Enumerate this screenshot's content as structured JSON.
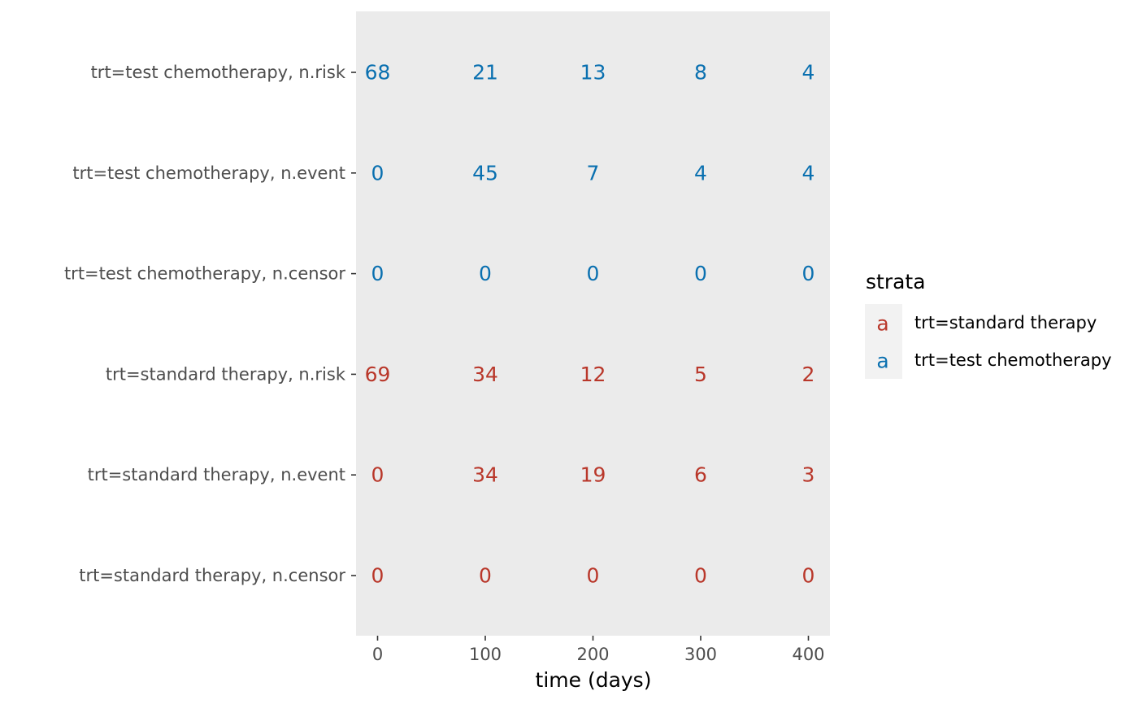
{
  "chart_data": {
    "type": "table",
    "title": "",
    "xlabel": "time (days)",
    "ylabel": "",
    "x_ticks": [
      0,
      100,
      200,
      300,
      400
    ],
    "xlim": [
      -20,
      420
    ],
    "grid": false,
    "rows": [
      {
        "label": "trt=test chemotherapy, n.risk",
        "stratum": "trt=test chemotherapy",
        "values": [
          68,
          21,
          13,
          8,
          4
        ]
      },
      {
        "label": "trt=test chemotherapy, n.event",
        "stratum": "trt=test chemotherapy",
        "values": [
          0,
          45,
          7,
          4,
          4
        ]
      },
      {
        "label": "trt=test chemotherapy, n.censor",
        "stratum": "trt=test chemotherapy",
        "values": [
          0,
          0,
          0,
          0,
          0
        ]
      },
      {
        "label": "trt=standard therapy, n.risk",
        "stratum": "trt=standard therapy",
        "values": [
          69,
          34,
          12,
          5,
          2
        ]
      },
      {
        "label": "trt=standard therapy, n.event",
        "stratum": "trt=standard therapy",
        "values": [
          0,
          34,
          19,
          6,
          3
        ]
      },
      {
        "label": "trt=standard therapy, n.censor",
        "stratum": "trt=standard therapy",
        "values": [
          0,
          0,
          0,
          0,
          0
        ]
      }
    ],
    "legend": {
      "title": "strata",
      "placement": "right",
      "key_glyph": "a",
      "entries": [
        {
          "name": "trt=standard therapy",
          "color": "#b9372a"
        },
        {
          "name": "trt=test chemotherapy",
          "color": "#0a70b0"
        }
      ]
    },
    "colors": {
      "panel_background": "#ebebeb",
      "legend_key_background": "#f2f2f2",
      "tick_color": "#333333"
    }
  }
}
